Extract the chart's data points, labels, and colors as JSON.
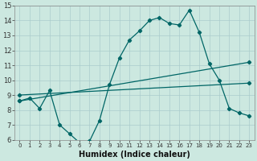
{
  "xlabel": "Humidex (Indice chaleur)",
  "background_color": "#cce8e0",
  "grid_color": "#aacccc",
  "line_color": "#006666",
  "xlim": [
    -0.5,
    23.5
  ],
  "ylim": [
    6,
    15
  ],
  "xticks": [
    0,
    1,
    2,
    3,
    4,
    5,
    6,
    7,
    8,
    9,
    10,
    11,
    12,
    13,
    14,
    15,
    16,
    17,
    18,
    19,
    20,
    21,
    22,
    23
  ],
  "yticks": [
    6,
    7,
    8,
    9,
    10,
    11,
    12,
    13,
    14,
    15
  ],
  "line1_x": [
    0,
    1,
    2,
    3,
    4,
    5,
    6,
    7,
    8,
    9,
    10,
    11,
    12,
    13,
    14,
    15,
    16,
    17,
    18,
    19,
    20,
    21,
    22,
    23
  ],
  "line1_y": [
    8.6,
    8.8,
    8.1,
    9.3,
    7.0,
    6.4,
    5.8,
    5.9,
    7.3,
    9.7,
    11.5,
    12.7,
    13.3,
    14.0,
    14.2,
    13.8,
    13.7,
    14.7,
    13.2,
    11.1,
    10.0,
    8.1,
    7.8,
    7.6
  ],
  "line2_x": [
    0,
    23
  ],
  "line2_y": [
    8.6,
    11.2
  ],
  "line3_x": [
    0,
    23
  ],
  "line3_y": [
    9.0,
    9.8
  ],
  "xlabel_fontsize": 7,
  "tick_fontsize_x": 5,
  "tick_fontsize_y": 6
}
